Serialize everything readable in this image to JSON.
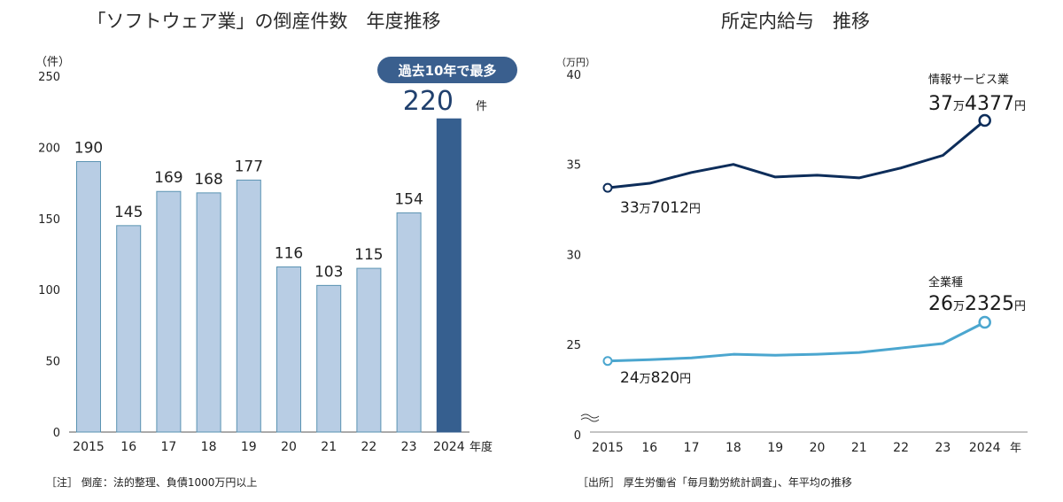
{
  "chart_data": [
    {
      "type": "bar",
      "title": "「ソフトウェア業」の倒産件数　年度推移",
      "y_unit": "（件）",
      "x_unit": "年度",
      "ylim": [
        0,
        250
      ],
      "yticks": [
        "0",
        "50",
        "100",
        "150",
        "200",
        "250"
      ],
      "categories": [
        "2015",
        "16",
        "17",
        "18",
        "19",
        "20",
        "21",
        "22",
        "23",
        "2024"
      ],
      "values": [
        190,
        145,
        169,
        168,
        177,
        116,
        103,
        115,
        154,
        220
      ],
      "value_labels": [
        "190",
        "145",
        "169",
        "168",
        "177",
        "116",
        "103",
        "115",
        "154",
        "220"
      ],
      "highlight_unit": "件",
      "badge": "過去10年で最多",
      "note": "［注］ 倒産：法的整理、負債1000万円以上",
      "colors": {
        "bar": "#b8cde4",
        "bar_border": "#5a93b2",
        "highlight": "#365f8f",
        "badge": "#3a5f8e"
      }
    },
    {
      "type": "line",
      "title": "所定内給与　推移",
      "y_unit": "（万円）",
      "x_unit": "年",
      "ylim": [
        0,
        40
      ],
      "yticks": [
        "0",
        "25",
        "30",
        "35",
        "40"
      ],
      "categories": [
        "2015",
        "16",
        "17",
        "18",
        "19",
        "20",
        "21",
        "22",
        "23",
        "2024"
      ],
      "series": [
        {
          "name": "情報サービス業",
          "values": [
            33.7,
            33.95,
            34.55,
            35.0,
            34.3,
            34.4,
            34.25,
            34.8,
            35.5,
            37.44
          ],
          "start_label": {
            "num1": "33",
            "unit1": "万",
            "num2": "7012",
            "unit2": "円"
          },
          "end_label": {
            "num1": "37",
            "unit1": "万",
            "num2": "4377",
            "unit2": "円"
          },
          "color": "#0d2d5a"
        },
        {
          "name": "全業種",
          "values": [
            24.08,
            24.15,
            24.25,
            24.45,
            24.4,
            24.45,
            24.55,
            24.8,
            25.05,
            26.23
          ],
          "start_label": {
            "num1": "24",
            "unit1": "万",
            "num2": "820",
            "unit2": "円"
          },
          "end_label": {
            "num1": "26",
            "unit1": "万",
            "num2": "2325",
            "unit2": "円"
          },
          "color": "#4ba6cf"
        }
      ],
      "note": "［出所］ 厚生労働省「毎月勤労統計調査」、年平均の推移"
    }
  ]
}
